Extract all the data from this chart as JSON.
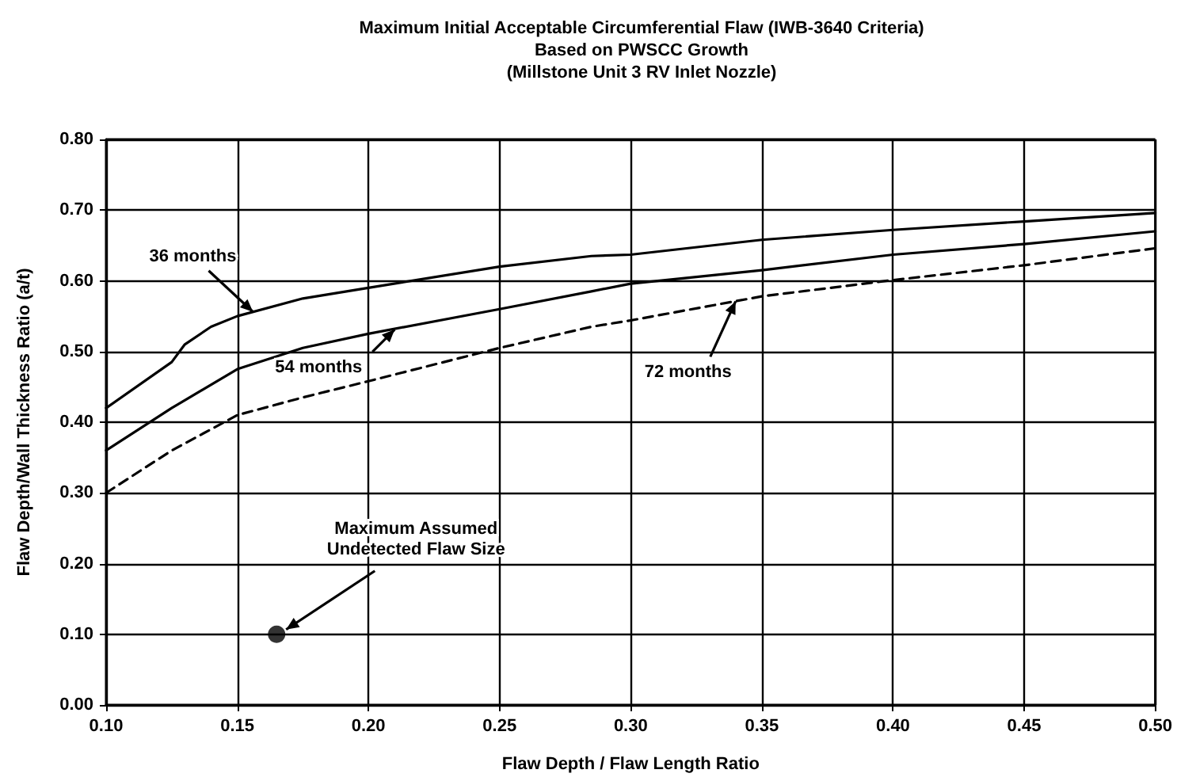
{
  "chart_data": {
    "type": "line",
    "title": "Maximum Initial Acceptable Circumferential Flaw (IWB-3640 Criteria)\nBased on PWSCC Growth\n(Millstone Unit 3 RV Inlet Nozzle)",
    "xlabel": "Flaw Depth / Flaw Length Ratio",
    "ylabel": "Flaw Depth/Wall Thickness Ratio (a/t)",
    "xlim": [
      0.1,
      0.5
    ],
    "xticks": [
      {
        "value": 0.1,
        "label": "0.10"
      },
      0.15,
      {
        "value": 0.2,
        "label": "0.20"
      },
      0.25,
      {
        "value": 0.3,
        "label": "0.30"
      },
      0.35,
      {
        "value": 0.4,
        "label": "0.40"
      },
      0.45,
      {
        "value": 0.5,
        "label": "0.50"
      }
    ],
    "ylim": [
      0,
      0.8
    ],
    "yticks": [
      {
        "value": 0,
        "label": "0.00"
      },
      {
        "value": 0.1,
        "label": "0.10"
      },
      {
        "value": 0.2,
        "label": "0.20"
      },
      {
        "value": 0.3,
        "label": "0.30"
      },
      {
        "value": 0.4,
        "label": "0.40"
      },
      {
        "value": 0.5,
        "label": "0.50"
      },
      {
        "value": 0.6,
        "label": "0.60"
      },
      {
        "value": 0.7,
        "label": "0.70"
      },
      {
        "value": 0.8,
        "label": "0.80"
      }
    ],
    "grid": true,
    "legend": false,
    "marker": "none",
    "series": [
      {
        "name": "36 months",
        "color": "#000000",
        "line_style": "solid",
        "x": [
          0.1,
          0.125,
          0.13,
          0.14,
          0.15,
          0.175,
          0.2,
          0.25,
          0.285,
          0.3,
          0.35,
          0.4,
          0.45,
          0.5
        ],
        "values": [
          0.42,
          0.485,
          0.51,
          0.535,
          0.55,
          0.575,
          0.59,
          0.62,
          0.635,
          0.637,
          0.658,
          0.672,
          0.684,
          0.696
        ]
      },
      {
        "name": "54 months",
        "color": "#000000",
        "line_style": "solid",
        "x": [
          0.1,
          0.125,
          0.15,
          0.175,
          0.2,
          0.25,
          0.285,
          0.3,
          0.35,
          0.4,
          0.45,
          0.5
        ],
        "values": [
          0.36,
          0.42,
          0.475,
          0.505,
          0.525,
          0.56,
          0.585,
          0.596,
          0.615,
          0.637,
          0.652,
          0.67
        ]
      },
      {
        "name": "72 months",
        "color": "#000000",
        "line_style": "dashed",
        "x": [
          0.1,
          0.125,
          0.15,
          0.175,
          0.2,
          0.25,
          0.285,
          0.3,
          0.35,
          0.4,
          0.45,
          0.5
        ],
        "values": [
          0.3,
          0.36,
          0.41,
          0.435,
          0.458,
          0.505,
          0.535,
          0.544,
          0.578,
          0.601,
          0.622,
          0.646
        ]
      },
      {
        "type": "scatter",
        "marker": "circle",
        "color": "#000000",
        "x": [
          0.165
        ],
        "values": [
          0.1
        ]
      }
    ],
    "annotations": [
      {
        "text": "Maximum Assumed\nUndetected Flaw Size",
        "x": 0.165,
        "y": 0.1
      }
    ]
  }
}
